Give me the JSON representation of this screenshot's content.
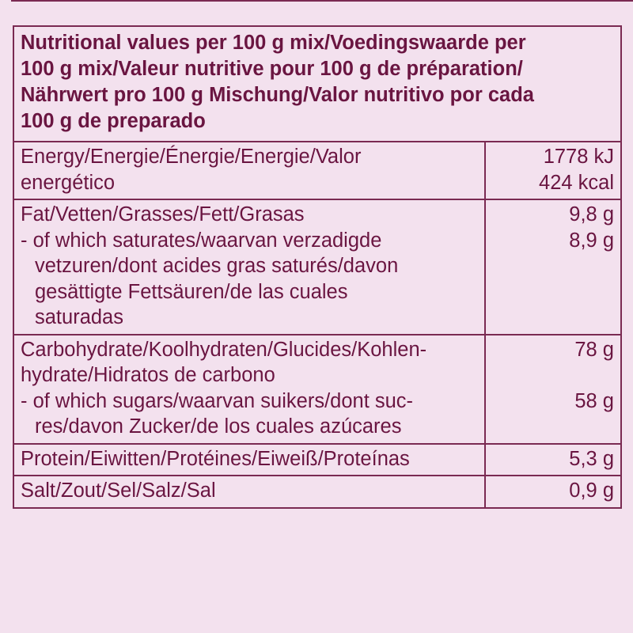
{
  "header": {
    "lines": [
      "Nutritional values per 100 g mix/Voedingswaarde per",
      "100 g mix/Valeur nutritive pour 100 g de préparation/",
      "Nährwert pro 100 g Mischung/Valor nutritivo por cada",
      "100 g de preparado"
    ]
  },
  "rows": {
    "energy": {
      "label": [
        "Energy/Energie/Énergie/Energie/Valor",
        "energético"
      ],
      "values": [
        "1778 kJ",
        "424 kcal"
      ]
    },
    "fat": {
      "label": [
        "Fat/Vetten/Grasses/Fett/Grasas"
      ],
      "value": "9,8 g",
      "sub_label": [
        "- of which saturates/waarvan verzadigde",
        "vetzuren/dont acides gras saturés/davon",
        "gesättigte Fettsäuren/de las cuales",
        "saturadas"
      ],
      "sub_value": "8,9 g"
    },
    "carbs": {
      "label": [
        "Carbohydrate/Koolhydraten/Glucides/Kohlen-",
        "hydrate/Hidratos de carbono"
      ],
      "value": "78 g",
      "sub_label": [
        "- of which sugars/waarvan suikers/dont suc-",
        "res/davon Zucker/de los cuales azúcares"
      ],
      "sub_value": "58 g"
    },
    "protein": {
      "label": "Protein/Eiwitten/Protéines/Eiweiß/Proteínas",
      "value": "5,3 g"
    },
    "salt": {
      "label": "Salt/Zout/Sel/Salz/Sal",
      "value": "0,9 g"
    }
  },
  "colors": {
    "background": "#f3e1ee",
    "text": "#6a1541",
    "border": "#7a2a52"
  }
}
